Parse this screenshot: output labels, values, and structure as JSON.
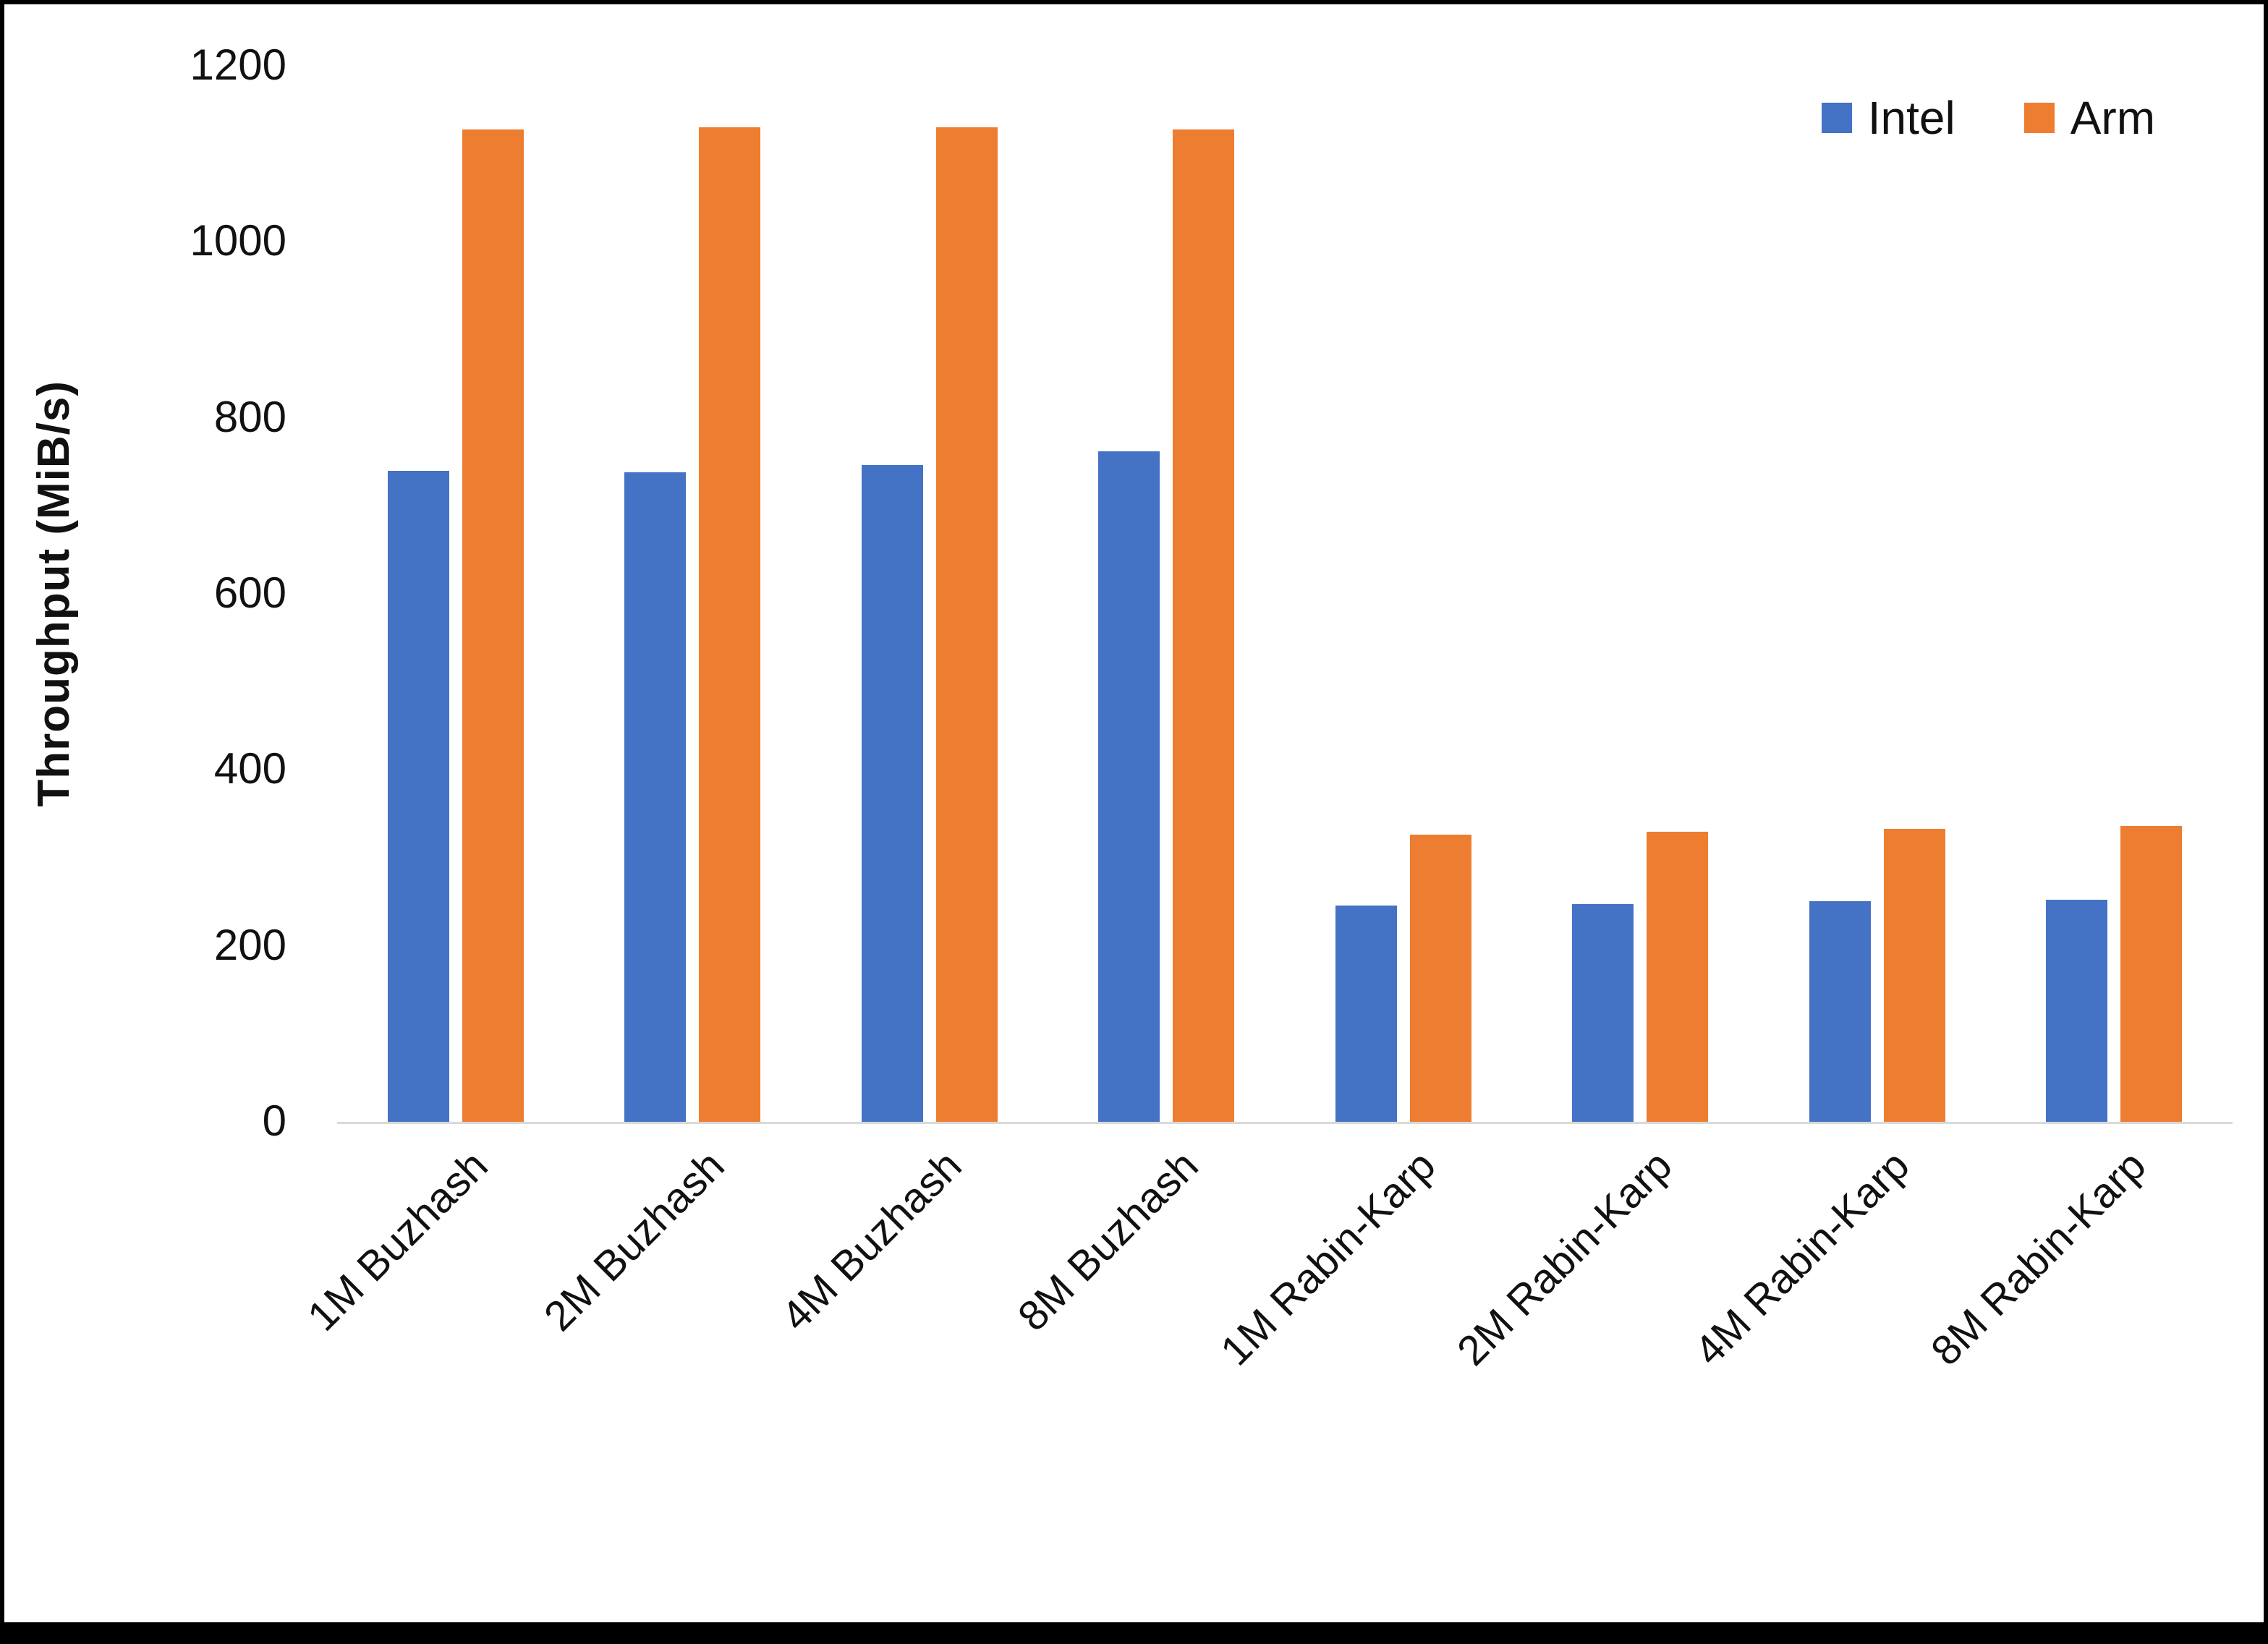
{
  "chart_data": {
    "type": "bar",
    "title": "",
    "ylabel": "Throughput (MiB/s)",
    "xlabel": "",
    "ylim": [
      0,
      1200
    ],
    "ytick_step": 200,
    "grid": false,
    "legend_position": "top-right",
    "categories": [
      "1M Buzhash",
      "2M Buzhash",
      "4M Buzhash",
      "8M Buzhash",
      "1M Rabin-Karp",
      "2M Rabin-Karp",
      "4M Rabin-Karp",
      "8M Rabin-Karp"
    ],
    "series": [
      {
        "name": "Intel",
        "color": "#4472C4",
        "values": [
          740,
          738,
          746,
          762,
          246,
          247,
          251,
          252
        ]
      },
      {
        "name": "Arm",
        "color": "#ED7D31",
        "values": [
          1128,
          1130,
          1130,
          1128,
          326,
          330,
          333,
          336
        ]
      }
    ],
    "y_ticks": [
      "0",
      "200",
      "400",
      "600",
      "800",
      "1000",
      "1200"
    ],
    "axis_line_color": "#d9d9d9"
  }
}
